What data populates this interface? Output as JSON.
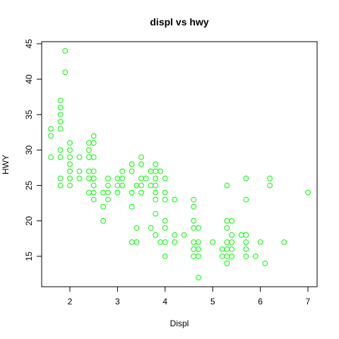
{
  "chart_data": {
    "type": "scatter",
    "title": "displ vs hwy",
    "xlabel": "Displ",
    "ylabel": "HWY",
    "xlim": [
      1.6,
      7.0
    ],
    "ylim": [
      12,
      44
    ],
    "xticks": [
      2,
      3,
      4,
      5,
      6,
      7
    ],
    "yticks": [
      15,
      20,
      25,
      30,
      35,
      40,
      45
    ],
    "grid": false,
    "point_color": "#00ff00",
    "series": [
      {
        "points": [
          [
            1.6,
            33
          ],
          [
            1.6,
            32
          ],
          [
            1.6,
            29
          ],
          [
            1.8,
            30
          ],
          [
            1.8,
            29
          ],
          [
            1.8,
            26
          ],
          [
            1.8,
            25
          ],
          [
            1.8,
            37
          ],
          [
            1.8,
            36
          ],
          [
            1.8,
            35
          ],
          [
            1.8,
            34
          ],
          [
            1.8,
            33
          ],
          [
            1.9,
            44
          ],
          [
            1.9,
            41
          ],
          [
            2.0,
            31
          ],
          [
            2.0,
            30
          ],
          [
            2.0,
            29
          ],
          [
            2.0,
            28
          ],
          [
            2.0,
            27
          ],
          [
            2.0,
            26
          ],
          [
            2.0,
            25
          ],
          [
            2.2,
            29
          ],
          [
            2.2,
            27
          ],
          [
            2.2,
            26
          ],
          [
            2.4,
            31
          ],
          [
            2.4,
            30
          ],
          [
            2.4,
            29
          ],
          [
            2.4,
            27
          ],
          [
            2.4,
            26
          ],
          [
            2.4,
            24
          ],
          [
            2.5,
            32
          ],
          [
            2.5,
            31
          ],
          [
            2.5,
            29
          ],
          [
            2.5,
            27
          ],
          [
            2.5,
            26
          ],
          [
            2.5,
            25
          ],
          [
            2.5,
            24
          ],
          [
            2.5,
            23
          ],
          [
            2.7,
            24
          ],
          [
            2.7,
            22
          ],
          [
            2.7,
            20
          ],
          [
            2.8,
            26
          ],
          [
            2.8,
            25
          ],
          [
            2.8,
            24
          ],
          [
            2.8,
            23
          ],
          [
            3.0,
            26
          ],
          [
            3.0,
            25
          ],
          [
            3.0,
            24
          ],
          [
            3.1,
            27
          ],
          [
            3.1,
            26
          ],
          [
            3.1,
            25
          ],
          [
            3.3,
            28
          ],
          [
            3.3,
            27
          ],
          [
            3.3,
            24
          ],
          [
            3.3,
            22
          ],
          [
            3.3,
            17
          ],
          [
            3.4,
            25
          ],
          [
            3.4,
            19
          ],
          [
            3.4,
            17
          ],
          [
            3.5,
            29
          ],
          [
            3.5,
            28
          ],
          [
            3.5,
            26
          ],
          [
            3.5,
            25
          ],
          [
            3.5,
            24
          ],
          [
            3.6,
            26
          ],
          [
            3.7,
            27
          ],
          [
            3.7,
            25
          ],
          [
            3.7,
            19
          ],
          [
            3.8,
            28
          ],
          [
            3.8,
            27
          ],
          [
            3.8,
            26
          ],
          [
            3.8,
            25
          ],
          [
            3.8,
            24
          ],
          [
            3.8,
            23
          ],
          [
            3.8,
            21
          ],
          [
            3.8,
            18
          ],
          [
            3.9,
            27
          ],
          [
            3.9,
            17
          ],
          [
            4.0,
            26
          ],
          [
            4.0,
            24
          ],
          [
            4.0,
            23
          ],
          [
            4.0,
            20
          ],
          [
            4.0,
            19
          ],
          [
            4.0,
            17
          ],
          [
            4.0,
            15
          ],
          [
            4.2,
            23
          ],
          [
            4.2,
            18
          ],
          [
            4.2,
            17
          ],
          [
            4.4,
            18
          ],
          [
            4.6,
            23
          ],
          [
            4.6,
            22
          ],
          [
            4.6,
            20
          ],
          [
            4.6,
            19
          ],
          [
            4.6,
            17
          ],
          [
            4.6,
            16
          ],
          [
            4.6,
            15
          ],
          [
            4.7,
            19
          ],
          [
            4.7,
            17
          ],
          [
            4.7,
            16
          ],
          [
            4.7,
            15
          ],
          [
            4.7,
            12
          ],
          [
            5.0,
            17
          ],
          [
            5.2,
            16
          ],
          [
            5.2,
            15
          ],
          [
            5.3,
            25
          ],
          [
            5.3,
            20
          ],
          [
            5.3,
            19
          ],
          [
            5.3,
            17
          ],
          [
            5.3,
            16
          ],
          [
            5.3,
            15
          ],
          [
            5.3,
            14
          ],
          [
            5.4,
            20
          ],
          [
            5.4,
            18
          ],
          [
            5.4,
            17
          ],
          [
            5.4,
            16
          ],
          [
            5.4,
            15
          ],
          [
            5.6,
            18
          ],
          [
            5.7,
            26
          ],
          [
            5.7,
            23
          ],
          [
            5.7,
            18
          ],
          [
            5.7,
            17
          ],
          [
            5.7,
            16
          ],
          [
            5.7,
            15
          ],
          [
            5.9,
            15
          ],
          [
            6.0,
            17
          ],
          [
            6.1,
            14
          ],
          [
            6.2,
            26
          ],
          [
            6.2,
            25
          ],
          [
            6.5,
            17
          ],
          [
            7.0,
            24
          ]
        ]
      }
    ]
  }
}
